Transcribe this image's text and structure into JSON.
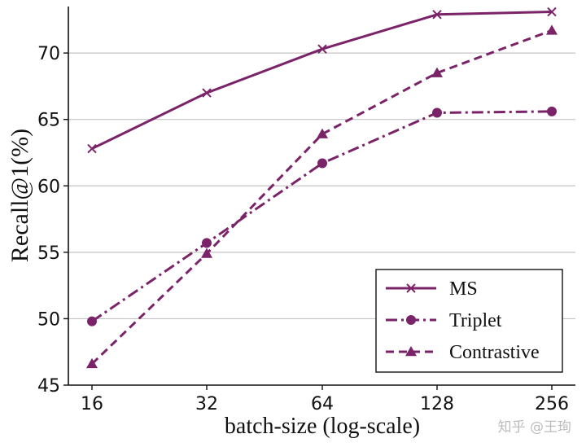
{
  "chart_data": {
    "type": "line",
    "title": "",
    "xlabel": "batch-size (log-scale)",
    "ylabel": "Recall@1(%)",
    "categories": [
      "16",
      "32",
      "64",
      "128",
      "256"
    ],
    "ylim": [
      45,
      73.5
    ],
    "yticks": [
      45,
      50,
      55,
      60,
      65,
      70
    ],
    "grid": "horizontal",
    "legend_position": "lower-right",
    "series": [
      {
        "name": "MS",
        "values": [
          62.8,
          67.0,
          70.3,
          72.9,
          73.1
        ],
        "style": "solid",
        "marker": "x",
        "color": "#7b2369"
      },
      {
        "name": "Triplet",
        "values": [
          49.8,
          55.7,
          61.7,
          65.5,
          65.6
        ],
        "style": "dashdot",
        "marker": "circle",
        "color": "#7b2369"
      },
      {
        "name": "Contrastive",
        "values": [
          46.6,
          54.9,
          63.9,
          68.5,
          71.7
        ],
        "style": "dashed",
        "marker": "triangle",
        "color": "#7b2369"
      }
    ]
  },
  "watermark": "知乎 @王珣"
}
